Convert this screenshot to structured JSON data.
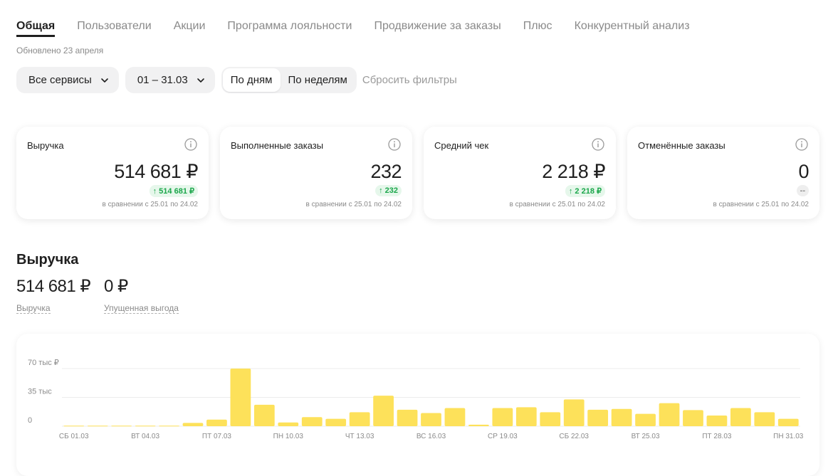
{
  "tabs": [
    {
      "label": "Общая",
      "active": true
    },
    {
      "label": "Пользователи",
      "active": false
    },
    {
      "label": "Акции",
      "active": false
    },
    {
      "label": "Программа лояльности",
      "active": false
    },
    {
      "label": "Продвижение за заказы",
      "active": false
    },
    {
      "label": "Плюс",
      "active": false
    },
    {
      "label": "Конкурентный анализ",
      "active": false
    }
  ],
  "updated": "Обновлено 23 апреля",
  "filters": {
    "services": "Все сервисы",
    "period": "01 – 31.03",
    "by_days": "По дням",
    "by_weeks": "По неделям",
    "reset": "Сбросить фильтры"
  },
  "cards": [
    {
      "title": "Выручка",
      "value": "514 681 ₽",
      "delta": "↑ 514 681 ₽",
      "compare": "в сравнении с 25.01 по 24.02"
    },
    {
      "title": "Выполненные заказы",
      "value": "232",
      "delta": "↑ 232",
      "compare": "в сравнении с 25.01 по 24.02"
    },
    {
      "title": "Средний чек",
      "value": "2 218 ₽",
      "delta": "↑ 2 218 ₽",
      "compare": "в сравнении с 25.01 по 24.02"
    },
    {
      "title": "Отменённые заказы",
      "value": "0",
      "delta": "--",
      "compare": "в сравнении с 25.01 по 24.02"
    }
  ],
  "revenue_section": {
    "title": "Выручка",
    "revenue_value": "514 681 ₽",
    "revenue_label": "Выручка",
    "lost_value": "0 ₽",
    "lost_label": "Упущенная выгода"
  },
  "colors": {
    "bar": "#fde15a",
    "positive": "#1aa64a",
    "muted": "#8a8a8a"
  },
  "chart_data": {
    "type": "bar",
    "ytick_labels": [
      "70 тыс ₽",
      "35 тыс",
      "0"
    ],
    "yticks": [
      70000,
      35000,
      0
    ],
    "ylim": [
      0,
      70000
    ],
    "categories": [
      "01.03",
      "02.03",
      "03.03",
      "04.03",
      "05.03",
      "06.03",
      "07.03",
      "08.03",
      "09.03",
      "10.03",
      "11.03",
      "12.03",
      "13.03",
      "14.03",
      "15.03",
      "16.03",
      "17.03",
      "18.03",
      "19.03",
      "20.03",
      "21.03",
      "22.03",
      "23.03",
      "24.03",
      "25.03",
      "26.03",
      "27.03",
      "28.03",
      "29.03",
      "30.03",
      "31.03"
    ],
    "xtick_labels": [
      {
        "index": 0,
        "label": "СБ 01.03"
      },
      {
        "index": 3,
        "label": "ВТ 04.03"
      },
      {
        "index": 6,
        "label": "ПТ 07.03"
      },
      {
        "index": 9,
        "label": "ПН 10.03"
      },
      {
        "index": 12,
        "label": "ЧТ 13.03"
      },
      {
        "index": 15,
        "label": "ВС 16.03"
      },
      {
        "index": 18,
        "label": "СР 19.03"
      },
      {
        "index": 21,
        "label": "СБ 22.03"
      },
      {
        "index": 24,
        "label": "ВТ 25.03"
      },
      {
        "index": 27,
        "label": "ПТ 28.03"
      },
      {
        "index": 30,
        "label": "ПН 31.03"
      }
    ],
    "values": [
      600,
      600,
      600,
      600,
      600,
      4000,
      8000,
      70000,
      26000,
      4500,
      11000,
      9000,
      17000,
      37000,
      20000,
      16000,
      22000,
      1800,
      22000,
      23000,
      17000,
      32500,
      20000,
      21000,
      15000,
      28000,
      19500,
      13000,
      22000,
      17000,
      9000
    ]
  }
}
